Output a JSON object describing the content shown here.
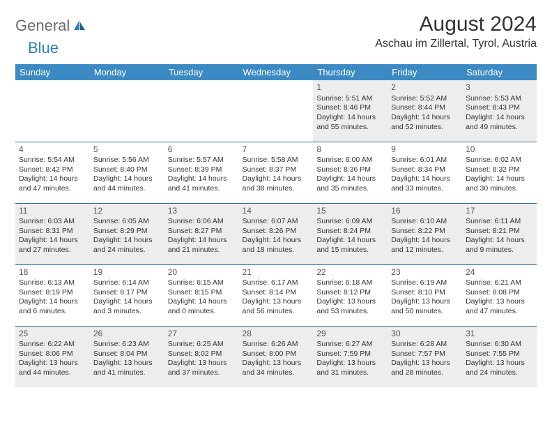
{
  "brand": {
    "part1": "General",
    "part2": "Blue"
  },
  "title": "August 2024",
  "location": "Aschau im Zillertal, Tyrol, Austria",
  "colors": {
    "header_bg": "#3b8ac4",
    "header_text": "#ffffff",
    "row_border": "#2a6a9a",
    "shade_bg": "#ededed",
    "text": "#333333",
    "logo_gray": "#6b6b6b",
    "logo_blue": "#2a7fbf"
  },
  "day_headers": [
    "Sunday",
    "Monday",
    "Tuesday",
    "Wednesday",
    "Thursday",
    "Friday",
    "Saturday"
  ],
  "weeks": [
    [
      {
        "day": "",
        "sunrise": "",
        "sunset": "",
        "daylight": "",
        "shade": false,
        "empty": true
      },
      {
        "day": "",
        "sunrise": "",
        "sunset": "",
        "daylight": "",
        "shade": false,
        "empty": true
      },
      {
        "day": "",
        "sunrise": "",
        "sunset": "",
        "daylight": "",
        "shade": false,
        "empty": true
      },
      {
        "day": "",
        "sunrise": "",
        "sunset": "",
        "daylight": "",
        "shade": false,
        "empty": true
      },
      {
        "day": "1",
        "sunrise": "Sunrise: 5:51 AM",
        "sunset": "Sunset: 8:46 PM",
        "daylight": "Daylight: 14 hours and 55 minutes.",
        "shade": true
      },
      {
        "day": "2",
        "sunrise": "Sunrise: 5:52 AM",
        "sunset": "Sunset: 8:44 PM",
        "daylight": "Daylight: 14 hours and 52 minutes.",
        "shade": true
      },
      {
        "day": "3",
        "sunrise": "Sunrise: 5:53 AM",
        "sunset": "Sunset: 8:43 PM",
        "daylight": "Daylight: 14 hours and 49 minutes.",
        "shade": true
      }
    ],
    [
      {
        "day": "4",
        "sunrise": "Sunrise: 5:54 AM",
        "sunset": "Sunset: 8:42 PM",
        "daylight": "Daylight: 14 hours and 47 minutes.",
        "shade": false
      },
      {
        "day": "5",
        "sunrise": "Sunrise: 5:56 AM",
        "sunset": "Sunset: 8:40 PM",
        "daylight": "Daylight: 14 hours and 44 minutes.",
        "shade": false
      },
      {
        "day": "6",
        "sunrise": "Sunrise: 5:57 AM",
        "sunset": "Sunset: 8:39 PM",
        "daylight": "Daylight: 14 hours and 41 minutes.",
        "shade": false
      },
      {
        "day": "7",
        "sunrise": "Sunrise: 5:58 AM",
        "sunset": "Sunset: 8:37 PM",
        "daylight": "Daylight: 14 hours and 38 minutes.",
        "shade": false
      },
      {
        "day": "8",
        "sunrise": "Sunrise: 6:00 AM",
        "sunset": "Sunset: 8:36 PM",
        "daylight": "Daylight: 14 hours and 35 minutes.",
        "shade": false
      },
      {
        "day": "9",
        "sunrise": "Sunrise: 6:01 AM",
        "sunset": "Sunset: 8:34 PM",
        "daylight": "Daylight: 14 hours and 33 minutes.",
        "shade": false
      },
      {
        "day": "10",
        "sunrise": "Sunrise: 6:02 AM",
        "sunset": "Sunset: 8:32 PM",
        "daylight": "Daylight: 14 hours and 30 minutes.",
        "shade": false
      }
    ],
    [
      {
        "day": "11",
        "sunrise": "Sunrise: 6:03 AM",
        "sunset": "Sunset: 8:31 PM",
        "daylight": "Daylight: 14 hours and 27 minutes.",
        "shade": true
      },
      {
        "day": "12",
        "sunrise": "Sunrise: 6:05 AM",
        "sunset": "Sunset: 8:29 PM",
        "daylight": "Daylight: 14 hours and 24 minutes.",
        "shade": true
      },
      {
        "day": "13",
        "sunrise": "Sunrise: 6:06 AM",
        "sunset": "Sunset: 8:27 PM",
        "daylight": "Daylight: 14 hours and 21 minutes.",
        "shade": true
      },
      {
        "day": "14",
        "sunrise": "Sunrise: 6:07 AM",
        "sunset": "Sunset: 8:26 PM",
        "daylight": "Daylight: 14 hours and 18 minutes.",
        "shade": true
      },
      {
        "day": "15",
        "sunrise": "Sunrise: 6:09 AM",
        "sunset": "Sunset: 8:24 PM",
        "daylight": "Daylight: 14 hours and 15 minutes.",
        "shade": true
      },
      {
        "day": "16",
        "sunrise": "Sunrise: 6:10 AM",
        "sunset": "Sunset: 8:22 PM",
        "daylight": "Daylight: 14 hours and 12 minutes.",
        "shade": true
      },
      {
        "day": "17",
        "sunrise": "Sunrise: 6:11 AM",
        "sunset": "Sunset: 8:21 PM",
        "daylight": "Daylight: 14 hours and 9 minutes.",
        "shade": true
      }
    ],
    [
      {
        "day": "18",
        "sunrise": "Sunrise: 6:13 AM",
        "sunset": "Sunset: 8:19 PM",
        "daylight": "Daylight: 14 hours and 6 minutes.",
        "shade": false
      },
      {
        "day": "19",
        "sunrise": "Sunrise: 6:14 AM",
        "sunset": "Sunset: 8:17 PM",
        "daylight": "Daylight: 14 hours and 3 minutes.",
        "shade": false
      },
      {
        "day": "20",
        "sunrise": "Sunrise: 6:15 AM",
        "sunset": "Sunset: 8:15 PM",
        "daylight": "Daylight: 14 hours and 0 minutes.",
        "shade": false
      },
      {
        "day": "21",
        "sunrise": "Sunrise: 6:17 AM",
        "sunset": "Sunset: 8:14 PM",
        "daylight": "Daylight: 13 hours and 56 minutes.",
        "shade": false
      },
      {
        "day": "22",
        "sunrise": "Sunrise: 6:18 AM",
        "sunset": "Sunset: 8:12 PM",
        "daylight": "Daylight: 13 hours and 53 minutes.",
        "shade": false
      },
      {
        "day": "23",
        "sunrise": "Sunrise: 6:19 AM",
        "sunset": "Sunset: 8:10 PM",
        "daylight": "Daylight: 13 hours and 50 minutes.",
        "shade": false
      },
      {
        "day": "24",
        "sunrise": "Sunrise: 6:21 AM",
        "sunset": "Sunset: 8:08 PM",
        "daylight": "Daylight: 13 hours and 47 minutes.",
        "shade": false
      }
    ],
    [
      {
        "day": "25",
        "sunrise": "Sunrise: 6:22 AM",
        "sunset": "Sunset: 8:06 PM",
        "daylight": "Daylight: 13 hours and 44 minutes.",
        "shade": true
      },
      {
        "day": "26",
        "sunrise": "Sunrise: 6:23 AM",
        "sunset": "Sunset: 8:04 PM",
        "daylight": "Daylight: 13 hours and 41 minutes.",
        "shade": true
      },
      {
        "day": "27",
        "sunrise": "Sunrise: 6:25 AM",
        "sunset": "Sunset: 8:02 PM",
        "daylight": "Daylight: 13 hours and 37 minutes.",
        "shade": true
      },
      {
        "day": "28",
        "sunrise": "Sunrise: 6:26 AM",
        "sunset": "Sunset: 8:00 PM",
        "daylight": "Daylight: 13 hours and 34 minutes.",
        "shade": true
      },
      {
        "day": "29",
        "sunrise": "Sunrise: 6:27 AM",
        "sunset": "Sunset: 7:59 PM",
        "daylight": "Daylight: 13 hours and 31 minutes.",
        "shade": true
      },
      {
        "day": "30",
        "sunrise": "Sunrise: 6:28 AM",
        "sunset": "Sunset: 7:57 PM",
        "daylight": "Daylight: 13 hours and 28 minutes.",
        "shade": true
      },
      {
        "day": "31",
        "sunrise": "Sunrise: 6:30 AM",
        "sunset": "Sunset: 7:55 PM",
        "daylight": "Daylight: 13 hours and 24 minutes.",
        "shade": true
      }
    ]
  ]
}
